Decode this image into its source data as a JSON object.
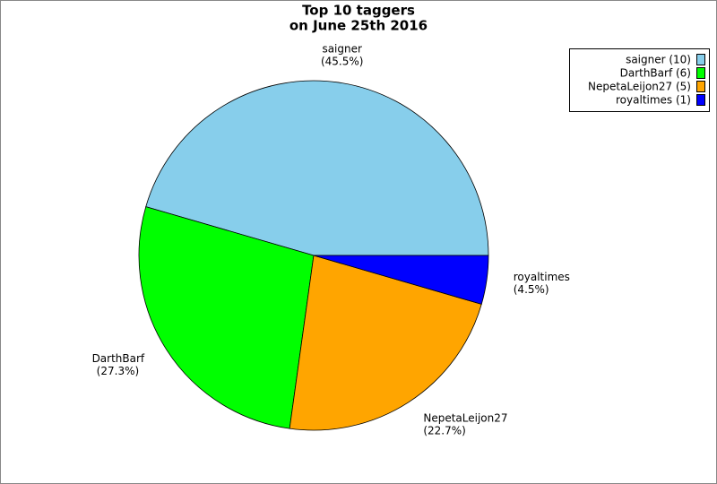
{
  "chart_data": {
    "type": "pie",
    "title": "Top 10 taggers",
    "subtitle": "on June 25th 2016",
    "categories": [
      "saigner",
      "DarthBarf",
      "NepetaLeijon27",
      "royaltimes"
    ],
    "values": [
      45.5,
      27.3,
      22.7,
      4.5
    ],
    "value_labels": [
      "(45.5%)",
      "(27.3%)",
      "(22.7%)",
      "(4.5%)"
    ],
    "legend_labels": [
      "saigner (10)",
      "DarthBarf (6)",
      "NepetaLeijon27 (5)",
      "royaltimes (1)"
    ],
    "colors": [
      "#87ceeb",
      "#00ff00",
      "#ffa500",
      "#0000ff"
    ],
    "legend": "top-right"
  }
}
